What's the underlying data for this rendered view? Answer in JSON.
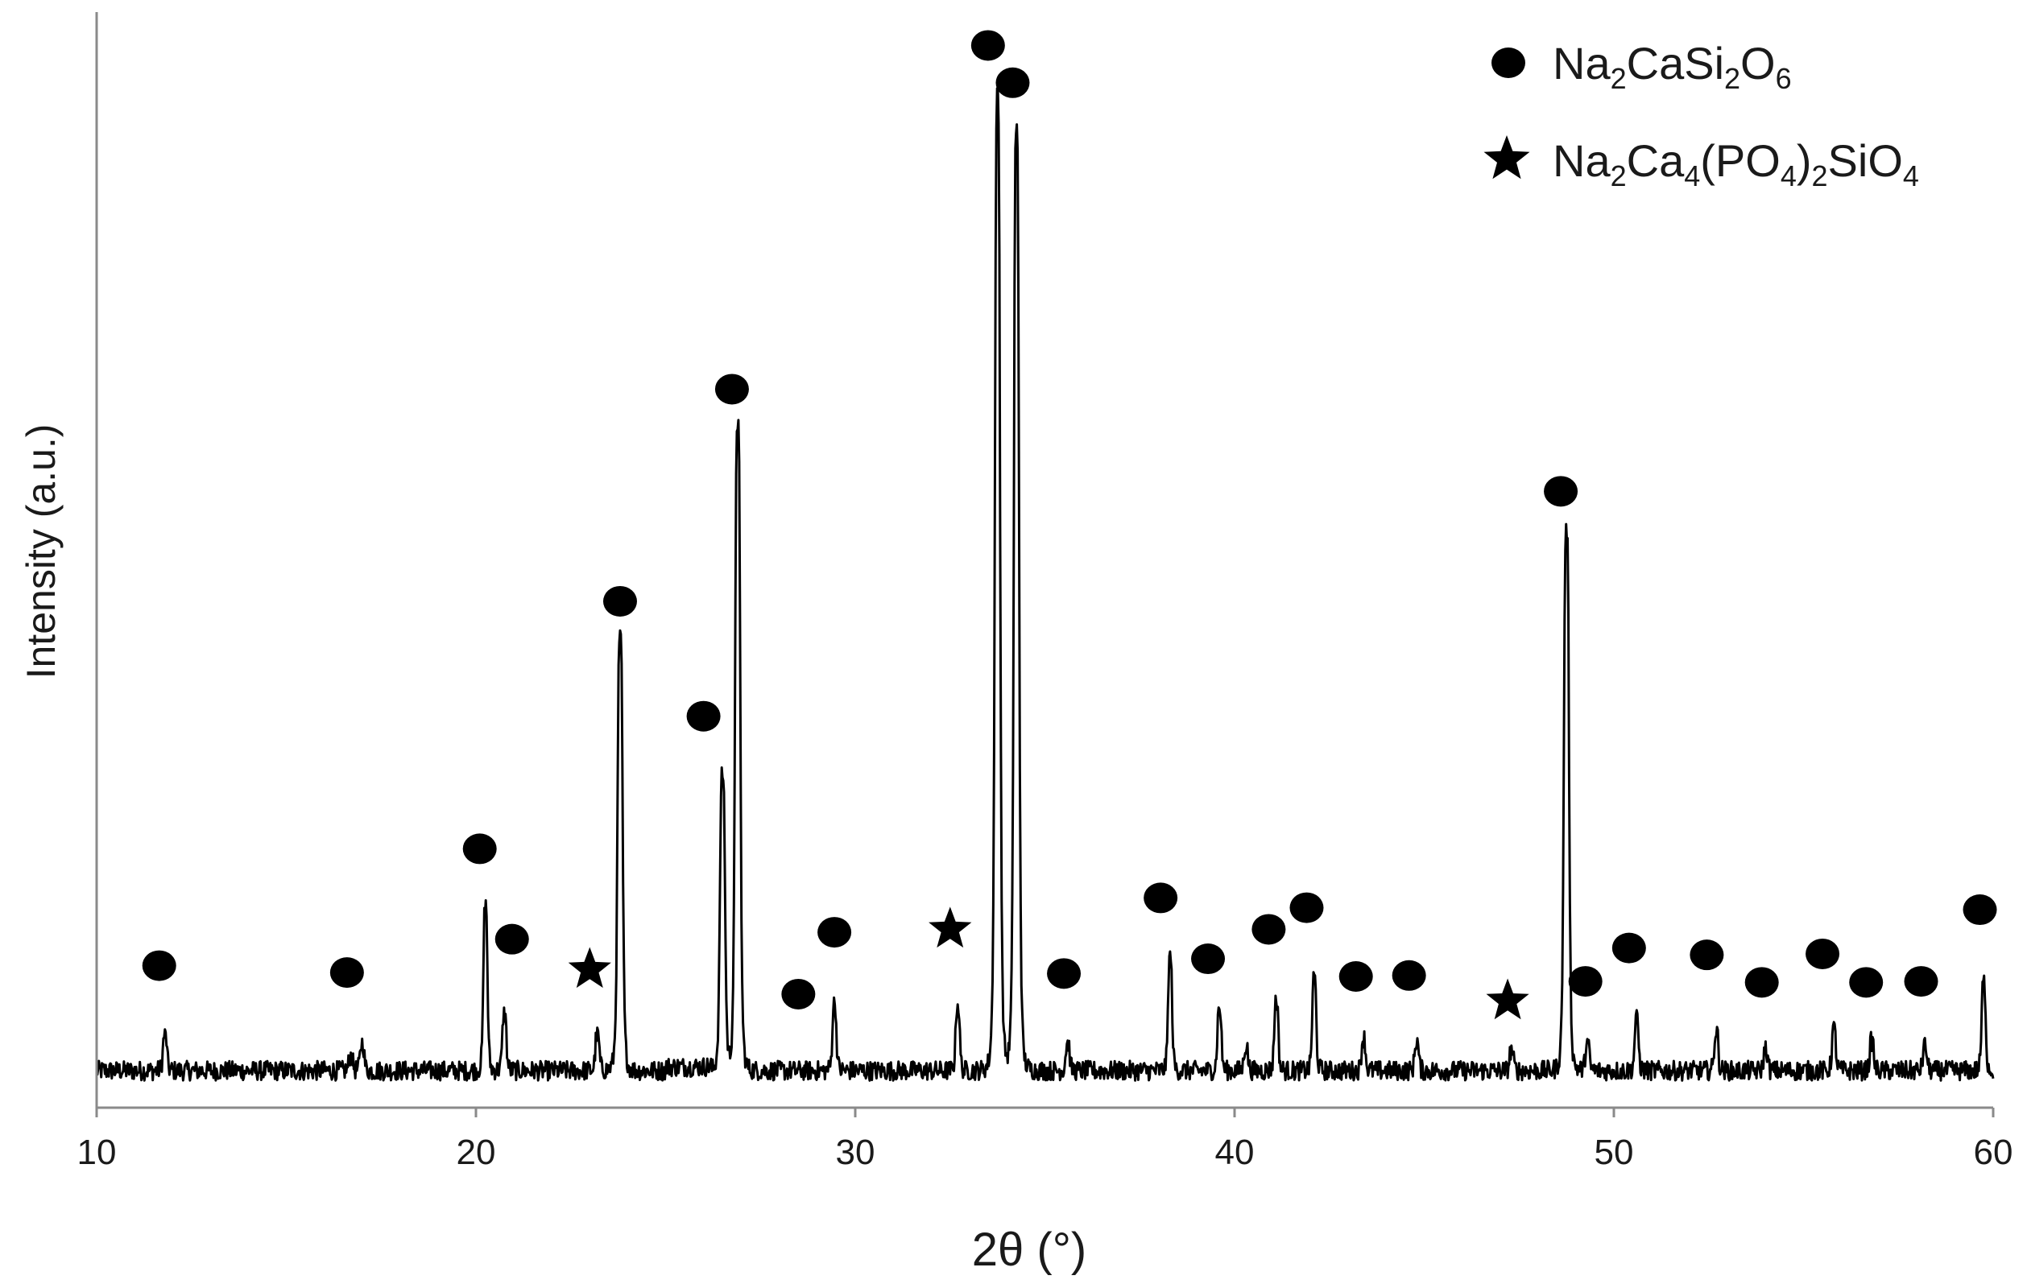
{
  "chart_data": {
    "type": "line",
    "title": "",
    "xlabel": "2θ (°)",
    "ylabel": "Intensity (a.u.)",
    "xlim": [
      10,
      60
    ],
    "ylim": [
      0,
      1
    ],
    "x_ticks": [
      "10",
      "20",
      "30",
      "40",
      "50",
      "60"
    ],
    "grid": false,
    "legend_position": "top-right",
    "legend": [
      {
        "marker": "circle",
        "name_base": "Na",
        "s1": "2",
        "m1": "CaSi",
        "s2": "2",
        "m2": "O",
        "s3": "6",
        "m3": ""
      },
      {
        "marker": "star",
        "name_base": "Na",
        "s1": "2",
        "m1": "Ca",
        "s2": "4",
        "m2": "(PO",
        "s3": "4",
        "m3": ")",
        "s4": "2",
        "m4": "SiO",
        "s5": "4"
      }
    ],
    "peaks": [
      {
        "x": 11.8,
        "y": 0.036
      },
      {
        "x": 16.7,
        "y": 0.015
      },
      {
        "x": 17.0,
        "y": 0.028
      },
      {
        "x": 20.25,
        "y": 0.168
      },
      {
        "x": 20.75,
        "y": 0.058
      },
      {
        "x": 23.2,
        "y": 0.036
      },
      {
        "x": 23.8,
        "y": 0.44
      },
      {
        "x": 26.5,
        "y": 0.3
      },
      {
        "x": 26.9,
        "y": 0.66
      },
      {
        "x": 29.45,
        "y": 0.068
      },
      {
        "x": 32.7,
        "y": 0.067
      },
      {
        "x": 33.75,
        "y": 0.992
      },
      {
        "x": 34.25,
        "y": 0.958
      },
      {
        "x": 35.6,
        "y": 0.028
      },
      {
        "x": 38.3,
        "y": 0.115
      },
      {
        "x": 39.6,
        "y": 0.063
      },
      {
        "x": 40.3,
        "y": 0.025
      },
      {
        "x": 41.1,
        "y": 0.072
      },
      {
        "x": 42.1,
        "y": 0.095
      },
      {
        "x": 43.4,
        "y": 0.033
      },
      {
        "x": 44.8,
        "y": 0.03
      },
      {
        "x": 47.3,
        "y": 0.02
      },
      {
        "x": 48.75,
        "y": 0.549
      },
      {
        "x": 49.3,
        "y": 0.028
      },
      {
        "x": 50.6,
        "y": 0.052
      },
      {
        "x": 52.7,
        "y": 0.04
      },
      {
        "x": 54.0,
        "y": 0.022
      },
      {
        "x": 55.8,
        "y": 0.042
      },
      {
        "x": 56.8,
        "y": 0.03
      },
      {
        "x": 58.2,
        "y": 0.025
      },
      {
        "x": 59.75,
        "y": 0.09
      }
    ],
    "markers": [
      {
        "type": "circle",
        "x": 11.65,
        "y": 0.111
      },
      {
        "type": "circle",
        "x": 16.6,
        "y": 0.104
      },
      {
        "type": "circle",
        "x": 20.1,
        "y": 0.23
      },
      {
        "type": "circle",
        "x": 20.95,
        "y": 0.138
      },
      {
        "type": "star",
        "x": 23.0,
        "y": 0.107
      },
      {
        "type": "circle",
        "x": 23.8,
        "y": 0.482
      },
      {
        "type": "circle",
        "x": 26.0,
        "y": 0.365
      },
      {
        "type": "circle",
        "x": 26.75,
        "y": 0.698
      },
      {
        "type": "circle",
        "x": 28.5,
        "y": 0.082
      },
      {
        "type": "circle",
        "x": 29.45,
        "y": 0.145
      },
      {
        "type": "star",
        "x": 32.5,
        "y": 0.148
      },
      {
        "type": "circle",
        "x": 33.5,
        "y": 1.048
      },
      {
        "type": "circle",
        "x": 34.15,
        "y": 1.01
      },
      {
        "type": "circle",
        "x": 35.5,
        "y": 0.103
      },
      {
        "type": "circle",
        "x": 38.05,
        "y": 0.18
      },
      {
        "type": "circle",
        "x": 39.3,
        "y": 0.118
      },
      {
        "type": "circle",
        "x": 40.9,
        "y": 0.148
      },
      {
        "type": "circle",
        "x": 41.9,
        "y": 0.17
      },
      {
        "type": "circle",
        "x": 43.2,
        "y": 0.1
      },
      {
        "type": "circle",
        "x": 44.6,
        "y": 0.101
      },
      {
        "type": "star",
        "x": 47.2,
        "y": 0.075
      },
      {
        "type": "circle",
        "x": 48.6,
        "y": 0.594
      },
      {
        "type": "circle",
        "x": 49.25,
        "y": 0.095
      },
      {
        "type": "circle",
        "x": 50.4,
        "y": 0.129
      },
      {
        "type": "circle",
        "x": 52.45,
        "y": 0.122
      },
      {
        "type": "circle",
        "x": 53.9,
        "y": 0.094
      },
      {
        "type": "circle",
        "x": 55.5,
        "y": 0.123
      },
      {
        "type": "circle",
        "x": 56.65,
        "y": 0.094
      },
      {
        "type": "circle",
        "x": 58.1,
        "y": 0.095
      },
      {
        "type": "circle",
        "x": 59.65,
        "y": 0.168
      }
    ]
  }
}
